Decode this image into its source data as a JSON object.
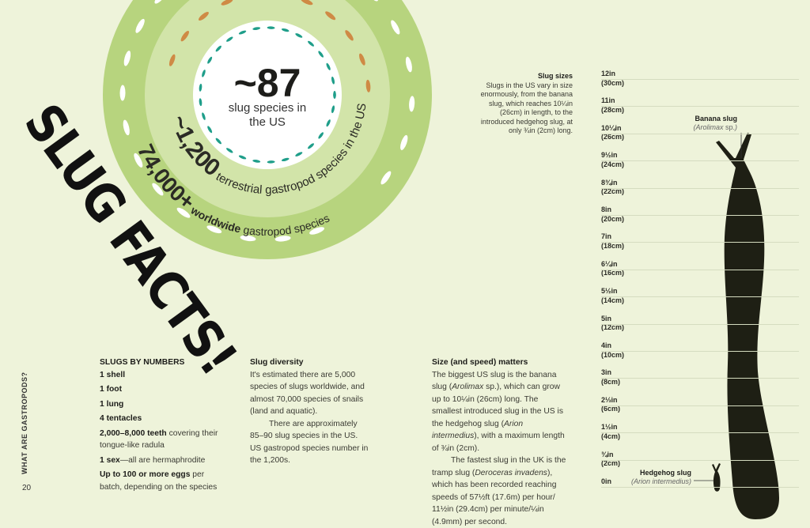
{
  "colors": {
    "background": "#eef3da",
    "outer_ring": "#b7d47e",
    "middle_ring": "#d2e4a9",
    "inner_circle": "#ffffff",
    "slug_white": "#ffffff",
    "slug_orange": "#cf8a45",
    "slug_teal": "#1f9e8a",
    "silhouette": "#1e1f14"
  },
  "title": "SLUG FACTS!",
  "section_label": "WHAT ARE GASTROPODS?",
  "page_number": "20",
  "circle": {
    "center_number": "~87",
    "center_caption_1": "slug species in",
    "center_caption_2": "the US",
    "middle_number": "~1,200",
    "middle_text": " terrestrial gastropod species in the US",
    "outer_number": "74,000+",
    "outer_bold": " worldwide",
    "outer_text": " gastropod species"
  },
  "by_numbers": {
    "heading": "SLUGS BY NUMBERS",
    "items": [
      {
        "bold": "1 shell",
        "rest": ""
      },
      {
        "bold": "1 foot",
        "rest": ""
      },
      {
        "bold": "1 lung",
        "rest": ""
      },
      {
        "bold": "4 tentacles",
        "rest": ""
      },
      {
        "bold": "2,000–8,000 teeth",
        "rest": " covering their tongue-like radula"
      },
      {
        "bold": "1 sex",
        "rest": "—all are hermaphrodite"
      },
      {
        "bold": "Up to 100 or more eggs",
        "rest": " per batch, depending on the species"
      }
    ]
  },
  "diversity": {
    "heading": "Slug diversity",
    "p1": "It's estimated there are 5,000 species of slugs worldwide, and almost 70,000 species of snails (land and aquatic).",
    "p2": "There are approximately 85–90 slug species in the US. US gastropod species number in the 1,200s."
  },
  "speed": {
    "heading": "Size (and speed) matters",
    "p1_a": "The biggest US slug is the banana slug (",
    "p1_i1": "Arolimax",
    "p1_b": " sp.), which can grow up to 10¼in (26cm) long. The smallest introduced slug in the US is the hedgehog slug (",
    "p1_i2": "Arion intermedius",
    "p1_c": "), with a maximum length of ¾in (2cm).",
    "p2_a": "The fastest slug in the UK is the tramp slug (",
    "p2_i": "Deroceras invadens",
    "p2_b": "), which has been recorded reaching speeds of 57½ft (17.6m) per hour/ 11½in (29.4cm) per minute/¼in (4.9mm) per second."
  },
  "sizes": {
    "heading": "Slug sizes",
    "text": "Slugs in the US vary in size enormously, from the banana slug, which reaches 10¼in (26cm) in length, to the introduced hedgehog slug, at only ¾in (2cm) long."
  },
  "ruler": [
    {
      "in": "12in",
      "cm": "(30cm)"
    },
    {
      "in": "11in",
      "cm": "(28cm)"
    },
    {
      "in": "10¼in",
      "cm": "(26cm)"
    },
    {
      "in": "9½in",
      "cm": "(24cm)"
    },
    {
      "in": "8¾in",
      "cm": "(22cm)"
    },
    {
      "in": "8in",
      "cm": "(20cm)"
    },
    {
      "in": "7in",
      "cm": "(18cm)"
    },
    {
      "in": "6¼in",
      "cm": "(16cm)"
    },
    {
      "in": "5½in",
      "cm": "(14cm)"
    },
    {
      "in": "5in",
      "cm": "(12cm)"
    },
    {
      "in": "4in",
      "cm": "(10cm)"
    },
    {
      "in": "3in",
      "cm": "(8cm)"
    },
    {
      "in": "2⅓in",
      "cm": "(6cm)"
    },
    {
      "in": "1½in",
      "cm": "(4cm)"
    },
    {
      "in": "¾in",
      "cm": "(2cm)"
    },
    {
      "in": "0in",
      "cm": ""
    }
  ],
  "banana": {
    "name": "Banana slug",
    "genus": "Arolimax",
    "suffix": " sp."
  },
  "hedgehog": {
    "name": "Hedgehog slug",
    "latin": "Arion intermedius"
  }
}
